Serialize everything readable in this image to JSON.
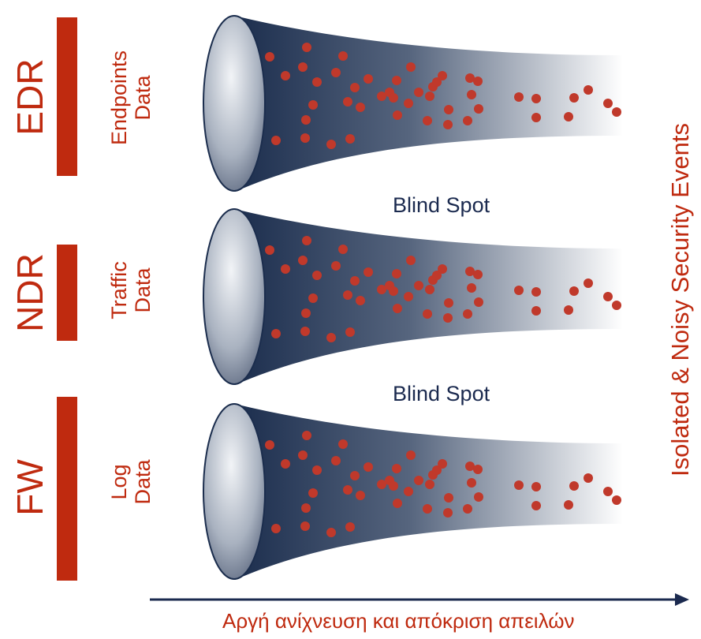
{
  "rows": [
    {
      "tool": "EDR",
      "data_line1": "Endpoints",
      "data_line2": "Data"
    },
    {
      "tool": "NDR",
      "data_line1": "Traffic",
      "data_line2": "Data"
    },
    {
      "tool": "FW",
      "data_line1": "Log",
      "data_line2": "Data"
    }
  ],
  "blind_spot_label": "Blind Spot",
  "side_label": "Isolated & Noisy Security Events",
  "axis_caption": "Αργή ανίχνευση και απόκριση απειλών",
  "colors": {
    "accent_red": "#bf2a0f",
    "dot_red": "#c0392b",
    "funnel_dark": "#1b2d4d",
    "text_navy": "#1b2a4f"
  }
}
